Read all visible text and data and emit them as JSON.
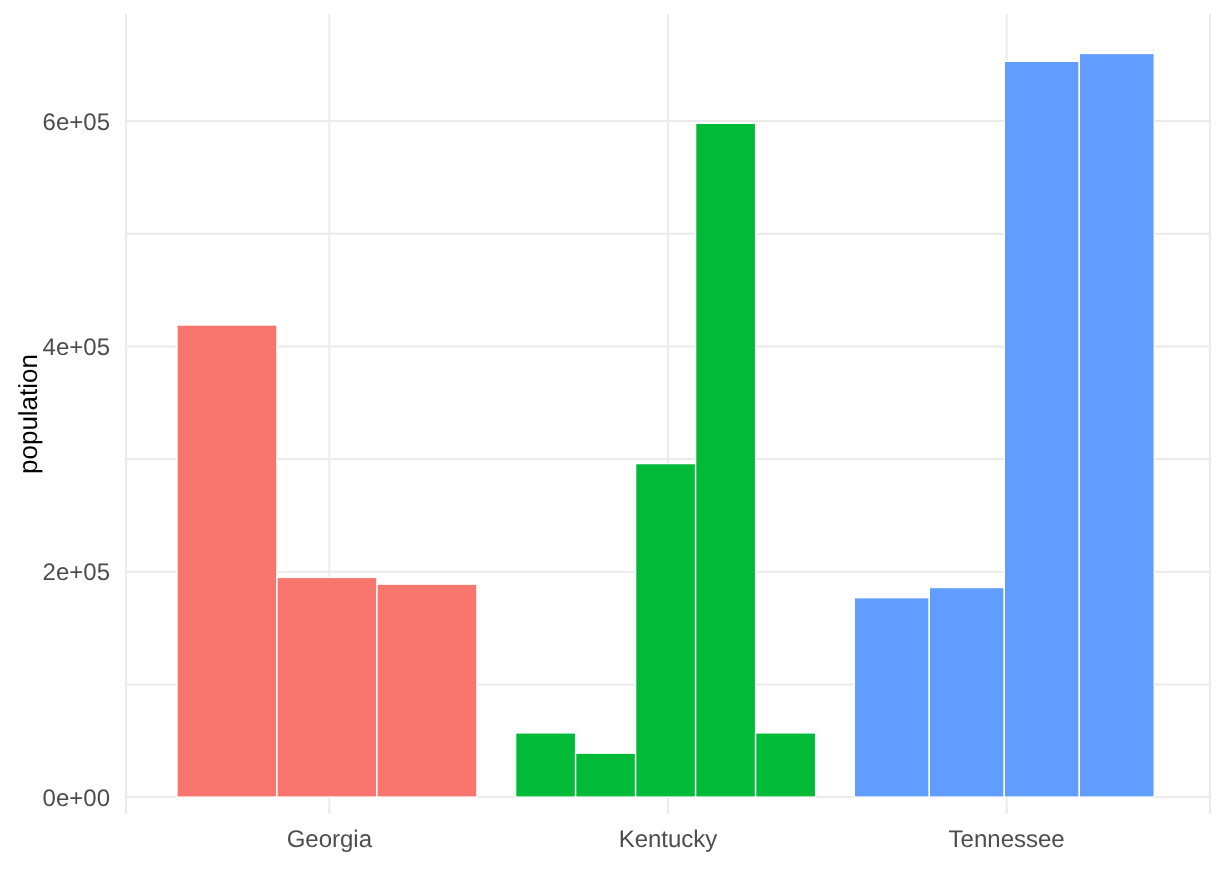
{
  "chart_data": {
    "type": "bar",
    "ylabel": "population",
    "categories": [
      "Georgia",
      "Kentucky",
      "Tennessee"
    ],
    "series": [
      {
        "values": [
          419000,
          57000,
          177000
        ],
        "colors": [
          "#f8766d",
          "#00ba38",
          "#619cff"
        ]
      },
      {
        "values": [
          195000,
          39000,
          186000
        ],
        "colors": [
          "#f8766d",
          "#00ba38",
          "#619cff"
        ]
      },
      {
        "values": [
          189000,
          296000,
          653000
        ],
        "colors": [
          "#f8766d",
          "#00ba38",
          "#619cff"
        ]
      },
      {
        "values": [
          null,
          598000,
          660000
        ],
        "colors": [
          null,
          "#00ba38",
          "#619cff"
        ]
      },
      {
        "values": [
          null,
          57000,
          null
        ],
        "colors": [
          null,
          "#00ba38",
          null
        ]
      }
    ],
    "ylim": [
      -15000,
      695000
    ],
    "yticks": [
      {
        "value": 0,
        "label": "0e+00"
      },
      {
        "value": 100000,
        "label": null
      },
      {
        "value": 200000,
        "label": "2e+05"
      },
      {
        "value": 300000,
        "label": null
      },
      {
        "value": 400000,
        "label": "4e+05"
      },
      {
        "value": 500000,
        "label": null
      },
      {
        "value": 600000,
        "label": "6e+05"
      }
    ],
    "grid": true,
    "legend": false
  }
}
